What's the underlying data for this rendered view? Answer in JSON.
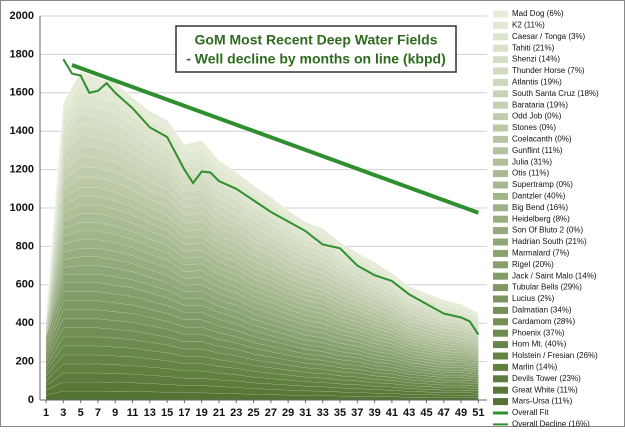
{
  "chart_data": {
    "type": "stacked-area",
    "title": "GoM Most Recent Deep Water Fields",
    "subtitle": "- Well decline by months on line (kbpd)",
    "x": [
      1,
      3,
      5,
      7,
      9,
      11,
      13,
      15,
      17,
      19,
      21,
      23,
      25,
      27,
      29,
      31,
      33,
      35,
      37,
      39,
      41,
      43,
      45,
      47,
      49,
      51
    ],
    "xlim": [
      0.3,
      52
    ],
    "xticks": [
      1,
      3,
      5,
      7,
      9,
      11,
      13,
      15,
      17,
      19,
      21,
      23,
      25,
      27,
      29,
      31,
      33,
      35,
      37,
      39,
      41,
      43,
      45,
      47,
      49,
      51
    ],
    "ylim": [
      0,
      2000
    ],
    "yticks": [
      0,
      200,
      400,
      600,
      800,
      1000,
      1200,
      1400,
      1600,
      1800,
      2000
    ],
    "grid": true,
    "legend": "right",
    "series": [
      {
        "name": "Mad Dog (6%)",
        "color": "#e6ecd8",
        "values": [
          5,
          45,
          55,
          52,
          52,
          48,
          46,
          45,
          41,
          42,
          39,
          37,
          36,
          34,
          32,
          30,
          29,
          27,
          25,
          24,
          22,
          20,
          19,
          18,
          17,
          15
        ]
      },
      {
        "name": "K2 (11%)",
        "color": "#e2e9d3",
        "values": [
          5,
          45,
          55,
          52,
          52,
          48,
          46,
          45,
          41,
          42,
          39,
          37,
          36,
          34,
          32,
          30,
          29,
          27,
          25,
          24,
          22,
          20,
          19,
          18,
          17,
          15
        ]
      },
      {
        "name": "Caesar / Tonga (3%)",
        "color": "#dde5ce",
        "values": [
          5,
          45,
          55,
          52,
          52,
          48,
          46,
          45,
          41,
          42,
          39,
          37,
          36,
          34,
          32,
          30,
          29,
          27,
          25,
          24,
          22,
          20,
          19,
          18,
          17,
          15
        ]
      },
      {
        "name": "Tahiti (21%)",
        "color": "#d9e2c9",
        "values": [
          5,
          45,
          55,
          52,
          52,
          48,
          46,
          45,
          41,
          42,
          39,
          37,
          36,
          34,
          32,
          30,
          29,
          27,
          25,
          24,
          22,
          20,
          19,
          18,
          17,
          15
        ]
      },
      {
        "name": "Shenzi (14%)",
        "color": "#d5dec5",
        "values": [
          5,
          45,
          55,
          52,
          52,
          48,
          46,
          45,
          41,
          42,
          39,
          37,
          36,
          34,
          32,
          30,
          29,
          27,
          25,
          24,
          22,
          20,
          19,
          18,
          17,
          15
        ]
      },
      {
        "name": "Thunder Horse (7%)",
        "color": "#d0dbc0",
        "values": [
          5,
          45,
          55,
          52,
          52,
          48,
          46,
          45,
          41,
          42,
          39,
          37,
          36,
          34,
          32,
          30,
          29,
          27,
          25,
          24,
          22,
          20,
          19,
          18,
          17,
          15
        ]
      },
      {
        "name": "Atlantis (19%)",
        "color": "#ccd7bb",
        "values": [
          5,
          45,
          55,
          52,
          52,
          48,
          46,
          45,
          41,
          42,
          39,
          37,
          36,
          34,
          32,
          30,
          29,
          27,
          25,
          24,
          22,
          20,
          19,
          18,
          17,
          15
        ]
      },
      {
        "name": "South Santa Cruz (18%)",
        "color": "#c8d4b6",
        "values": [
          5,
          45,
          55,
          52,
          52,
          48,
          46,
          45,
          41,
          42,
          39,
          37,
          36,
          34,
          32,
          30,
          29,
          27,
          25,
          24,
          22,
          20,
          19,
          18,
          17,
          15
        ]
      },
      {
        "name": "Barataria (19%)",
        "color": "#c3d0b1",
        "values": [
          5,
          45,
          55,
          52,
          52,
          48,
          46,
          45,
          41,
          42,
          39,
          37,
          36,
          34,
          32,
          30,
          29,
          27,
          25,
          24,
          22,
          20,
          19,
          18,
          17,
          15
        ]
      },
      {
        "name": "Odd Job (0%)",
        "color": "#bfcdac",
        "values": [
          5,
          45,
          55,
          52,
          52,
          48,
          46,
          45,
          41,
          42,
          39,
          37,
          36,
          34,
          32,
          30,
          29,
          27,
          25,
          24,
          22,
          20,
          19,
          18,
          17,
          15
        ]
      },
      {
        "name": "Stones (0%)",
        "color": "#bbc9a7",
        "values": [
          5,
          45,
          55,
          52,
          52,
          48,
          46,
          45,
          41,
          42,
          39,
          37,
          36,
          34,
          32,
          30,
          29,
          27,
          25,
          24,
          22,
          20,
          19,
          18,
          17,
          15
        ]
      },
      {
        "name": "Coelacanth (0%)",
        "color": "#b6c6a2",
        "values": [
          8,
          40,
          45,
          45,
          44,
          42,
          40,
          39,
          35,
          36,
          33,
          32,
          30,
          29,
          27,
          26,
          25,
          23,
          21,
          20,
          18,
          16,
          15,
          14,
          13,
          12
        ]
      },
      {
        "name": "Gunflint (11%)",
        "color": "#b2c29d",
        "values": [
          8,
          40,
          45,
          45,
          44,
          42,
          40,
          39,
          35,
          36,
          33,
          32,
          30,
          29,
          27,
          26,
          25,
          23,
          21,
          20,
          18,
          16,
          15,
          14,
          13,
          12
        ]
      },
      {
        "name": "Julia (31%)",
        "color": "#aebf98",
        "values": [
          8,
          40,
          45,
          45,
          44,
          42,
          40,
          39,
          35,
          36,
          33,
          32,
          30,
          29,
          27,
          26,
          25,
          23,
          21,
          20,
          18,
          16,
          15,
          14,
          13,
          12
        ]
      },
      {
        "name": "Otis (11%)",
        "color": "#a9bb94",
        "values": [
          8,
          40,
          45,
          45,
          44,
          42,
          40,
          39,
          35,
          36,
          33,
          32,
          30,
          29,
          27,
          26,
          25,
          23,
          21,
          20,
          18,
          16,
          15,
          14,
          13,
          12
        ]
      },
      {
        "name": "Supertramp (0%)",
        "color": "#a5b88f",
        "values": [
          8,
          40,
          45,
          45,
          44,
          42,
          40,
          39,
          35,
          36,
          33,
          32,
          30,
          29,
          27,
          26,
          25,
          23,
          21,
          20,
          18,
          16,
          15,
          14,
          13,
          12
        ]
      },
      {
        "name": "Dantzler (40%)",
        "color": "#a1b48a",
        "values": [
          8,
          40,
          45,
          45,
          44,
          42,
          40,
          39,
          35,
          36,
          33,
          32,
          30,
          29,
          27,
          26,
          25,
          23,
          21,
          20,
          18,
          16,
          15,
          14,
          13,
          12
        ]
      },
      {
        "name": "Big Bend (16%)",
        "color": "#9cb185",
        "values": [
          8,
          40,
          45,
          45,
          44,
          42,
          40,
          39,
          35,
          36,
          33,
          32,
          30,
          29,
          27,
          26,
          25,
          23,
          21,
          20,
          18,
          16,
          15,
          14,
          13,
          12
        ]
      },
      {
        "name": "Heidelberg (8%)",
        "color": "#98ad80",
        "values": [
          8,
          40,
          45,
          45,
          44,
          42,
          40,
          39,
          35,
          36,
          33,
          32,
          30,
          29,
          27,
          26,
          25,
          23,
          21,
          20,
          18,
          16,
          15,
          14,
          13,
          12
        ]
      },
      {
        "name": "Son Of Bluto 2 (0%)",
        "color": "#94aa7b",
        "values": [
          8,
          40,
          45,
          45,
          44,
          42,
          40,
          39,
          35,
          36,
          33,
          32,
          30,
          29,
          27,
          26,
          25,
          23,
          21,
          20,
          18,
          16,
          15,
          14,
          13,
          12
        ]
      },
      {
        "name": "Hadrian South (21%)",
        "color": "#8fa676",
        "values": [
          8,
          40,
          45,
          45,
          44,
          42,
          40,
          39,
          35,
          36,
          33,
          32,
          30,
          29,
          27,
          26,
          25,
          23,
          21,
          20,
          18,
          16,
          15,
          14,
          13,
          12
        ]
      },
      {
        "name": "Marmalard (7%)",
        "color": "#8ba371",
        "values": [
          8,
          40,
          45,
          45,
          44,
          42,
          40,
          39,
          35,
          36,
          33,
          32,
          30,
          29,
          27,
          26,
          25,
          23,
          21,
          20,
          18,
          16,
          15,
          14,
          13,
          12
        ]
      },
      {
        "name": "Rigel (20%)",
        "color": "#879f6c",
        "values": [
          25,
          47,
          47,
          47,
          46,
          45,
          43,
          41,
          38,
          38,
          35,
          33,
          30,
          28,
          26,
          24,
          23,
          21,
          20,
          18,
          17,
          15,
          14,
          13,
          13,
          12
        ]
      },
      {
        "name": "Jack / Saint Malo (14%)",
        "color": "#829c67",
        "values": [
          25,
          47,
          47,
          47,
          46,
          45,
          43,
          41,
          38,
          38,
          35,
          33,
          30,
          28,
          26,
          24,
          23,
          21,
          20,
          18,
          17,
          15,
          14,
          13,
          13,
          12
        ]
      },
      {
        "name": "Tubular Bells (29%)",
        "color": "#7e9863",
        "values": [
          25,
          47,
          47,
          47,
          46,
          45,
          43,
          41,
          38,
          38,
          35,
          33,
          30,
          28,
          26,
          24,
          23,
          21,
          20,
          18,
          17,
          15,
          14,
          13,
          13,
          12
        ]
      },
      {
        "name": "Lucius (2%)",
        "color": "#7a955e",
        "values": [
          25,
          47,
          47,
          47,
          46,
          45,
          43,
          41,
          38,
          38,
          35,
          33,
          30,
          28,
          26,
          24,
          23,
          21,
          20,
          18,
          17,
          15,
          14,
          13,
          13,
          12
        ]
      },
      {
        "name": "Dalmatian (34%)",
        "color": "#759159",
        "values": [
          25,
          47,
          47,
          47,
          46,
          45,
          43,
          41,
          38,
          38,
          35,
          33,
          30,
          28,
          26,
          24,
          23,
          21,
          20,
          18,
          17,
          15,
          14,
          13,
          13,
          12
        ]
      },
      {
        "name": "Cardamom (28%)",
        "color": "#718e54",
        "values": [
          25,
          47,
          47,
          47,
          46,
          45,
          43,
          41,
          38,
          38,
          35,
          33,
          30,
          28,
          26,
          24,
          23,
          21,
          20,
          18,
          17,
          15,
          14,
          13,
          13,
          12
        ]
      },
      {
        "name": "Phoenix (37%)",
        "color": "#6d8a4f",
        "values": [
          25,
          47,
          47,
          47,
          46,
          45,
          43,
          41,
          38,
          38,
          35,
          33,
          30,
          28,
          26,
          24,
          23,
          21,
          20,
          18,
          17,
          15,
          14,
          13,
          13,
          12
        ]
      },
      {
        "name": "Horn Mt. (40%)",
        "color": "#68874a",
        "values": [
          25,
          47,
          47,
          47,
          46,
          45,
          43,
          41,
          38,
          38,
          35,
          33,
          30,
          28,
          26,
          24,
          23,
          21,
          20,
          18,
          17,
          15,
          14,
          13,
          13,
          12
        ]
      },
      {
        "name": "Holstein / Fresian (26%)",
        "color": "#648345",
        "values": [
          25,
          47,
          47,
          47,
          46,
          45,
          43,
          41,
          38,
          38,
          35,
          33,
          30,
          28,
          26,
          24,
          23,
          21,
          20,
          18,
          17,
          15,
          14,
          13,
          13,
          12
        ]
      },
      {
        "name": "Marlin (14%)",
        "color": "#608040",
        "values": [
          25,
          47,
          47,
          47,
          46,
          45,
          43,
          41,
          38,
          38,
          35,
          33,
          30,
          28,
          26,
          24,
          23,
          21,
          20,
          18,
          17,
          15,
          14,
          13,
          13,
          12
        ]
      },
      {
        "name": "Devils Tower (23%)",
        "color": "#5b7c3c",
        "values": [
          25,
          47,
          47,
          47,
          46,
          45,
          43,
          41,
          38,
          38,
          35,
          33,
          30,
          28,
          26,
          24,
          23,
          21,
          20,
          18,
          17,
          15,
          14,
          13,
          13,
          12
        ]
      },
      {
        "name": "Great White (11%)",
        "color": "#587838",
        "values": [
          25,
          47,
          47,
          47,
          46,
          45,
          43,
          41,
          38,
          38,
          35,
          33,
          30,
          28,
          26,
          24,
          23,
          21,
          20,
          18,
          17,
          15,
          14,
          13,
          13,
          12
        ]
      },
      {
        "name": "Mars-Ursa (11%)",
        "color": "#547434",
        "values": [
          25,
          47,
          47,
          47,
          46,
          45,
          43,
          41,
          38,
          38,
          35,
          33,
          30,
          28,
          26,
          24,
          23,
          21,
          20,
          18,
          17,
          15,
          14,
          13,
          13,
          12
        ]
      }
    ],
    "lines": [
      {
        "name": "Overall Fit",
        "color": "#2f8f2f",
        "width": 4,
        "x": [
          4,
          51
        ],
        "values": [
          1745,
          975
        ]
      },
      {
        "name": "Overall Decline (16%)",
        "color": "#2f8f2f",
        "width": 2,
        "x": [
          3,
          4,
          5,
          6,
          7,
          8,
          9,
          11,
          13,
          15,
          17,
          18,
          19,
          20,
          21,
          23,
          25,
          27,
          29,
          31,
          33,
          35,
          37,
          39,
          41,
          43,
          45,
          47,
          49,
          50,
          51
        ],
        "values": [
          1775,
          1700,
          1690,
          1600,
          1610,
          1650,
          1600,
          1520,
          1420,
          1370,
          1200,
          1130,
          1190,
          1185,
          1140,
          1100,
          1040,
          980,
          930,
          880,
          810,
          790,
          700,
          650,
          620,
          550,
          500,
          450,
          430,
          410,
          340
        ]
      }
    ]
  }
}
